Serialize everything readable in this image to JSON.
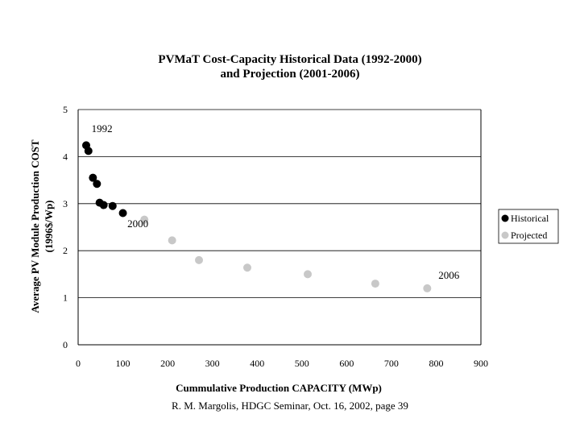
{
  "chart_data": {
    "type": "scatter",
    "title": [
      "PVMaT Cost-Capacity Historical Data (1992-2000)",
      "and Projection (2001-2006)"
    ],
    "xlabel": "Cummulative Production CAPACITY (MWp)",
    "ylabel": [
      "Average PV Module Production COST",
      "(1996$/Wp)"
    ],
    "xlim": [
      0,
      900
    ],
    "ylim": [
      0,
      5
    ],
    "xticks": [
      0,
      100,
      200,
      300,
      400,
      500,
      600,
      700,
      800,
      900
    ],
    "yticks": [
      0,
      1,
      2,
      3,
      4,
      5
    ],
    "grid": "horizontal",
    "legend_position": "right",
    "series": [
      {
        "name": "Historical",
        "color": "#000000",
        "points": [
          {
            "x": 18,
            "y": 4.24
          },
          {
            "x": 23,
            "y": 4.12
          },
          {
            "x": 33,
            "y": 3.55
          },
          {
            "x": 42,
            "y": 3.42
          },
          {
            "x": 48,
            "y": 3.02
          },
          {
            "x": 57,
            "y": 2.97
          },
          {
            "x": 77,
            "y": 2.95
          },
          {
            "x": 100,
            "y": 2.8
          }
        ]
      },
      {
        "name": "Projected",
        "color": "#c8c8c8",
        "points": [
          {
            "x": 148,
            "y": 2.66
          },
          {
            "x": 210,
            "y": 2.22
          },
          {
            "x": 270,
            "y": 1.8
          },
          {
            "x": 378,
            "y": 1.64
          },
          {
            "x": 513,
            "y": 1.5
          },
          {
            "x": 664,
            "y": 1.3
          },
          {
            "x": 780,
            "y": 1.2
          }
        ]
      }
    ],
    "annotations": [
      {
        "text": "1992",
        "x": 30,
        "y": 4.52
      },
      {
        "text": "2000",
        "x": 110,
        "y": 2.5
      },
      {
        "text": "2006",
        "x": 805,
        "y": 1.4
      }
    ]
  },
  "footer": "R. M. Margolis, HDGC Seminar, Oct. 16, 2002, page 39"
}
